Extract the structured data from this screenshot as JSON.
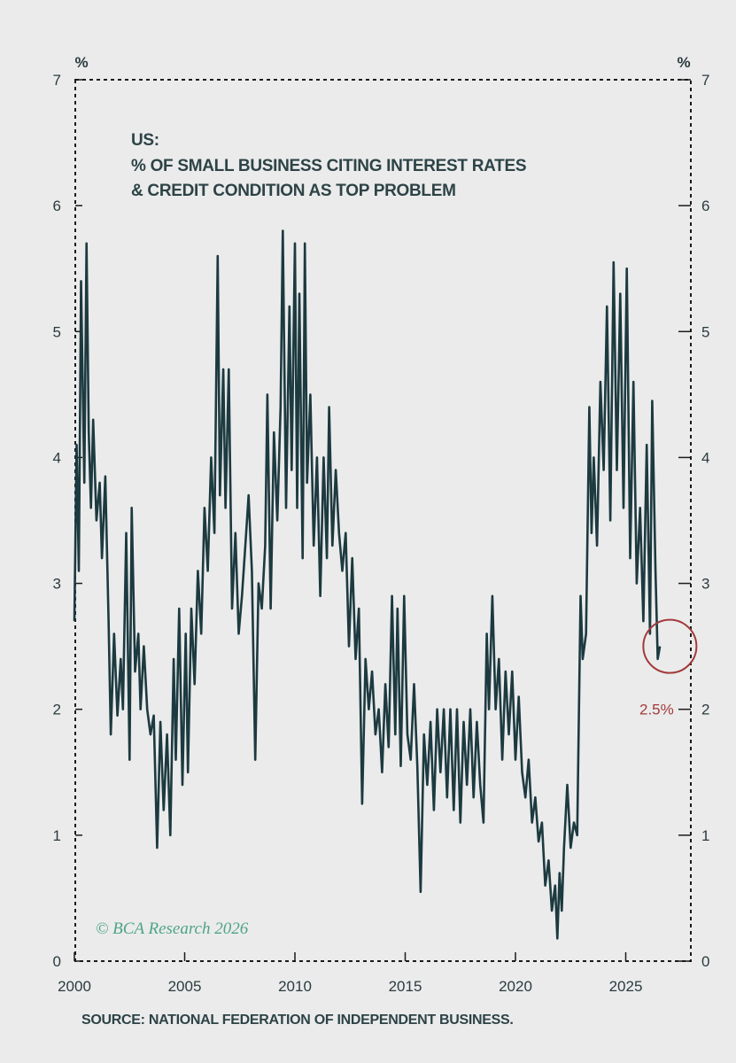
{
  "chart_data": {
    "type": "line",
    "title_lines": [
      "US:",
      "% OF SMALL BUSINESS CITING INTEREST RATES",
      "& CREDIT CONDITION AS TOP PROBLEM"
    ],
    "ylabel_left": "%",
    "ylabel_right": "%",
    "ylim": [
      0,
      7
    ],
    "xlim": [
      2000,
      2028
    ],
    "y_ticks": [
      0,
      1,
      2,
      3,
      4,
      5,
      6,
      7
    ],
    "x_ticks": [
      2000,
      2005,
      2010,
      2015,
      2020,
      2025
    ],
    "grid": false,
    "series": [
      {
        "color": "#1c3a40",
        "points": [
          [
            2000.0,
            2.7
          ],
          [
            2000.1,
            4.1
          ],
          [
            2000.2,
            3.1
          ],
          [
            2000.3,
            5.4
          ],
          [
            2000.45,
            3.8
          ],
          [
            2000.55,
            5.7
          ],
          [
            2000.65,
            4.2
          ],
          [
            2000.75,
            3.6
          ],
          [
            2000.85,
            4.3
          ],
          [
            2001.0,
            3.5
          ],
          [
            2001.15,
            3.8
          ],
          [
            2001.25,
            3.2
          ],
          [
            2001.4,
            3.85
          ],
          [
            2001.55,
            2.7
          ],
          [
            2001.65,
            1.8
          ],
          [
            2001.8,
            2.6
          ],
          [
            2001.95,
            1.95
          ],
          [
            2002.1,
            2.4
          ],
          [
            2002.2,
            2.0
          ],
          [
            2002.35,
            3.4
          ],
          [
            2002.5,
            1.6
          ],
          [
            2002.6,
            3.6
          ],
          [
            2002.75,
            2.3
          ],
          [
            2002.9,
            2.6
          ],
          [
            2003.0,
            2.0
          ],
          [
            2003.15,
            2.5
          ],
          [
            2003.3,
            2.0
          ],
          [
            2003.45,
            1.8
          ],
          [
            2003.6,
            1.95
          ],
          [
            2003.75,
            0.9
          ],
          [
            2003.9,
            1.9
          ],
          [
            2004.05,
            1.2
          ],
          [
            2004.2,
            1.8
          ],
          [
            2004.35,
            1.0
          ],
          [
            2004.5,
            2.4
          ],
          [
            2004.6,
            1.6
          ],
          [
            2004.75,
            2.8
          ],
          [
            2004.9,
            1.4
          ],
          [
            2005.05,
            2.6
          ],
          [
            2005.15,
            1.5
          ],
          [
            2005.3,
            2.8
          ],
          [
            2005.45,
            2.2
          ],
          [
            2005.6,
            3.1
          ],
          [
            2005.75,
            2.6
          ],
          [
            2005.9,
            3.6
          ],
          [
            2006.05,
            3.1
          ],
          [
            2006.2,
            4.0
          ],
          [
            2006.35,
            3.4
          ],
          [
            2006.5,
            5.6
          ],
          [
            2006.6,
            3.7
          ],
          [
            2006.75,
            4.7
          ],
          [
            2006.85,
            3.6
          ],
          [
            2007.0,
            4.7
          ],
          [
            2007.15,
            2.8
          ],
          [
            2007.3,
            3.4
          ],
          [
            2007.45,
            2.6
          ],
          [
            2007.6,
            2.9
          ],
          [
            2007.75,
            3.3
          ],
          [
            2007.9,
            3.7
          ],
          [
            2008.05,
            3.1
          ],
          [
            2008.2,
            1.6
          ],
          [
            2008.35,
            3.0
          ],
          [
            2008.5,
            2.8
          ],
          [
            2008.65,
            3.3
          ],
          [
            2008.75,
            4.5
          ],
          [
            2008.9,
            2.8
          ],
          [
            2009.05,
            4.2
          ],
          [
            2009.2,
            3.5
          ],
          [
            2009.35,
            4.4
          ],
          [
            2009.45,
            5.8
          ],
          [
            2009.6,
            3.6
          ],
          [
            2009.75,
            5.2
          ],
          [
            2009.85,
            3.9
          ],
          [
            2010.0,
            5.7
          ],
          [
            2010.1,
            3.6
          ],
          [
            2010.2,
            5.3
          ],
          [
            2010.35,
            3.2
          ],
          [
            2010.45,
            5.7
          ],
          [
            2010.55,
            3.8
          ],
          [
            2010.7,
            4.5
          ],
          [
            2010.85,
            3.3
          ],
          [
            2011.0,
            4.0
          ],
          [
            2011.15,
            2.9
          ],
          [
            2011.3,
            4.0
          ],
          [
            2011.45,
            3.2
          ],
          [
            2011.55,
            4.4
          ],
          [
            2011.7,
            3.3
          ],
          [
            2011.85,
            3.9
          ],
          [
            2012.0,
            3.4
          ],
          [
            2012.15,
            3.1
          ],
          [
            2012.3,
            3.4
          ],
          [
            2012.45,
            2.5
          ],
          [
            2012.6,
            3.2
          ],
          [
            2012.75,
            2.4
          ],
          [
            2012.9,
            2.8
          ],
          [
            2013.05,
            1.25
          ],
          [
            2013.2,
            2.4
          ],
          [
            2013.35,
            2.0
          ],
          [
            2013.5,
            2.3
          ],
          [
            2013.65,
            1.8
          ],
          [
            2013.8,
            2.0
          ],
          [
            2013.95,
            1.5
          ],
          [
            2014.1,
            2.2
          ],
          [
            2014.25,
            1.7
          ],
          [
            2014.4,
            2.9
          ],
          [
            2014.55,
            1.8
          ],
          [
            2014.65,
            2.8
          ],
          [
            2014.8,
            1.55
          ],
          [
            2014.95,
            2.9
          ],
          [
            2015.1,
            1.8
          ],
          [
            2015.25,
            1.6
          ],
          [
            2015.4,
            2.2
          ],
          [
            2015.55,
            1.55
          ],
          [
            2015.7,
            0.55
          ],
          [
            2015.85,
            1.8
          ],
          [
            2016.0,
            1.4
          ],
          [
            2016.15,
            1.9
          ],
          [
            2016.3,
            1.2
          ],
          [
            2016.45,
            2.0
          ],
          [
            2016.6,
            1.5
          ],
          [
            2016.75,
            2.0
          ],
          [
            2016.9,
            1.3
          ],
          [
            2017.05,
            2.0
          ],
          [
            2017.2,
            1.2
          ],
          [
            2017.35,
            2.0
          ],
          [
            2017.5,
            1.1
          ],
          [
            2017.65,
            1.9
          ],
          [
            2017.8,
            1.4
          ],
          [
            2017.95,
            2.0
          ],
          [
            2018.1,
            1.3
          ],
          [
            2018.25,
            1.9
          ],
          [
            2018.4,
            1.4
          ],
          [
            2018.55,
            1.1
          ],
          [
            2018.7,
            2.6
          ],
          [
            2018.8,
            2.0
          ],
          [
            2018.95,
            2.9
          ],
          [
            2019.1,
            2.0
          ],
          [
            2019.25,
            2.4
          ],
          [
            2019.4,
            1.6
          ],
          [
            2019.55,
            2.3
          ],
          [
            2019.7,
            1.8
          ],
          [
            2019.85,
            2.3
          ],
          [
            2020.0,
            1.6
          ],
          [
            2020.15,
            2.1
          ],
          [
            2020.3,
            1.5
          ],
          [
            2020.45,
            1.3
          ],
          [
            2020.6,
            1.6
          ],
          [
            2020.75,
            1.1
          ],
          [
            2020.9,
            1.3
          ],
          [
            2021.05,
            0.95
          ],
          [
            2021.2,
            1.1
          ],
          [
            2021.35,
            0.6
          ],
          [
            2021.5,
            0.8
          ],
          [
            2021.65,
            0.4
          ],
          [
            2021.8,
            0.6
          ],
          [
            2021.9,
            0.18
          ],
          [
            2022.0,
            0.7
          ],
          [
            2022.1,
            0.4
          ],
          [
            2022.2,
            0.9
          ],
          [
            2022.35,
            1.4
          ],
          [
            2022.5,
            0.9
          ],
          [
            2022.65,
            1.1
          ],
          [
            2022.8,
            1.0
          ],
          [
            2022.95,
            2.9
          ],
          [
            2023.05,
            2.4
          ],
          [
            2023.2,
            2.6
          ],
          [
            2023.35,
            4.4
          ],
          [
            2023.45,
            3.4
          ],
          [
            2023.55,
            4.0
          ],
          [
            2023.7,
            3.3
          ],
          [
            2023.85,
            4.6
          ],
          [
            2024.0,
            3.9
          ],
          [
            2024.15,
            5.2
          ],
          [
            2024.3,
            3.5
          ],
          [
            2024.45,
            5.55
          ],
          [
            2024.6,
            3.9
          ],
          [
            2024.75,
            5.3
          ],
          [
            2024.9,
            3.6
          ],
          [
            2025.05,
            5.5
          ],
          [
            2025.2,
            3.2
          ],
          [
            2025.35,
            4.6
          ],
          [
            2025.5,
            3.0
          ],
          [
            2025.65,
            3.6
          ],
          [
            2025.8,
            2.7
          ],
          [
            2025.95,
            4.1
          ],
          [
            2026.1,
            2.6
          ],
          [
            2026.2,
            4.45
          ],
          [
            2026.35,
            3.1
          ],
          [
            2026.45,
            2.4
          ],
          [
            2026.55,
            2.5
          ]
        ]
      }
    ],
    "annotations": [
      {
        "text": "2.5%",
        "color": "#a33a3a",
        "x": 2026.4,
        "y": 2.5
      }
    ]
  },
  "watermark": "© BCA Research 2026",
  "source": "SOURCE: NATIONAL FEDERATION OF INDEPENDENT BUSINESS."
}
